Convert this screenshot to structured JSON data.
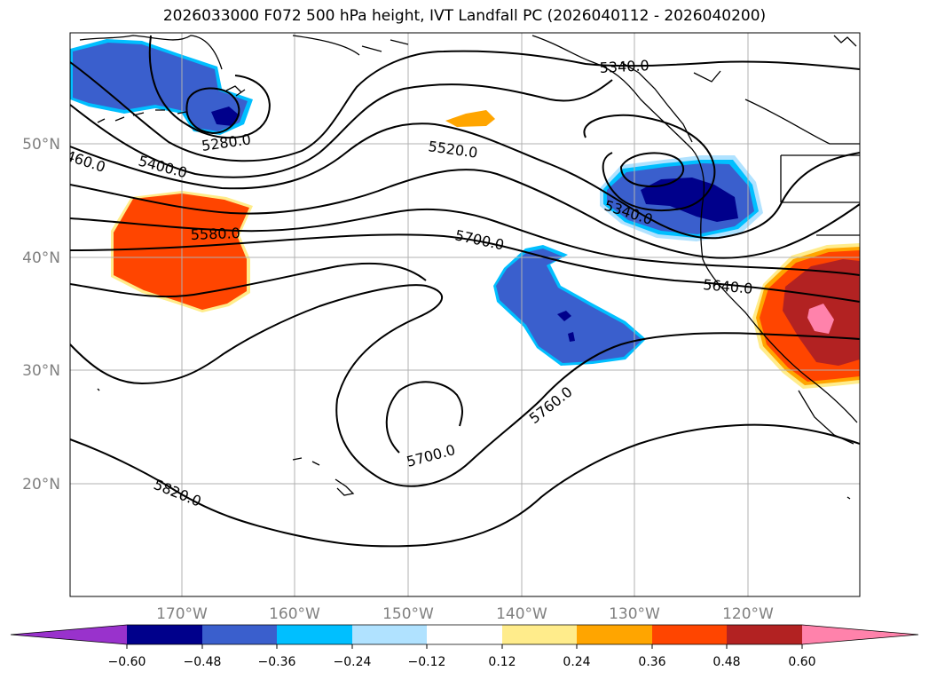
{
  "title": "2026033000 F072 500 hPa height, IVT Landfall PC (2026040112 - 2026040200)",
  "map": {
    "lat_labels": [
      "50°N",
      "40°N",
      "30°N",
      "20°N"
    ],
    "lon_labels": [
      "170°W",
      "160°W",
      "150°W",
      "140°W",
      "130°W",
      "120°W"
    ],
    "contour_labels": [
      "5340.0",
      "5280.0",
      "460.0",
      "5400.0",
      "5520.0",
      "5580.0",
      "5700.0",
      "5340.0",
      "5640.0",
      "5760.0",
      "5700.0",
      "5820.0"
    ],
    "contour_color": "#000000",
    "grid_color": "#b0b0b0"
  },
  "colorbar": {
    "ticks": [
      "−0.60",
      "−0.48",
      "−0.36",
      "−0.24",
      "−0.12",
      "0.12",
      "0.24",
      "0.36",
      "0.48",
      "0.60"
    ],
    "colors": [
      "#9932CC",
      "#00008B",
      "#3A5FCD",
      "#00BFFF",
      "#B0E2FF",
      "#FFFFFF",
      "#FFEC8B",
      "#FFA500",
      "#FF4500",
      "#B22222",
      "#FF82AB"
    ]
  }
}
